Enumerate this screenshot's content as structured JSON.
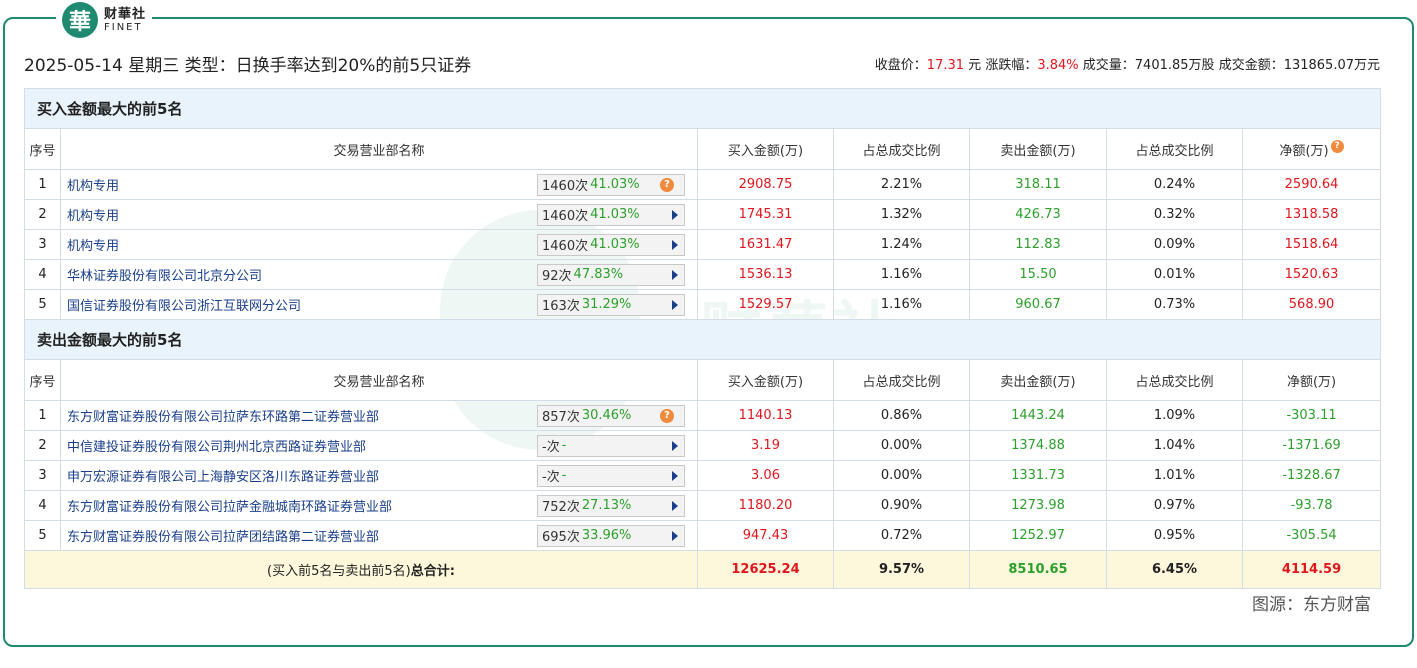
{
  "brand": {
    "seal": "華",
    "cn": "财華社",
    "en": "FINET"
  },
  "header": {
    "title": "2025-05-14 星期三 类型：日换手率达到20%的前5只证券",
    "close_label": "收盘价：",
    "close_value": "17.31",
    "close_unit": "元",
    "change_label": "涨跌幅：",
    "change_value": "3.84%",
    "volume": "成交量：7401.85万股",
    "turnover": "成交金额：131865.07万元"
  },
  "columns": [
    "序号",
    "交易营业部名称",
    "买入金额(万)",
    "占总成交比例",
    "卖出金额(万)",
    "占总成交比例",
    "净额(万)"
  ],
  "buy_section": {
    "title": "买入金额最大的前5名",
    "rows": [
      {
        "idx": "1",
        "name": "机构专用",
        "count": "1460次",
        "pct": "41.03%",
        "icon": "q",
        "buy": "2908.75",
        "buy_ratio": "2.21%",
        "sell": "318.11",
        "sell_ratio": "0.24%",
        "net": "2590.64"
      },
      {
        "idx": "2",
        "name": "机构专用",
        "count": "1460次",
        "pct": "41.03%",
        "icon": "arrow",
        "buy": "1745.31",
        "buy_ratio": "1.32%",
        "sell": "426.73",
        "sell_ratio": "0.32%",
        "net": "1318.58"
      },
      {
        "idx": "3",
        "name": "机构专用",
        "count": "1460次",
        "pct": "41.03%",
        "icon": "arrow",
        "buy": "1631.47",
        "buy_ratio": "1.24%",
        "sell": "112.83",
        "sell_ratio": "0.09%",
        "net": "1518.64"
      },
      {
        "idx": "4",
        "name": "华林证券股份有限公司北京分公司",
        "count": "92次",
        "pct": "47.83%",
        "icon": "arrow",
        "buy": "1536.13",
        "buy_ratio": "1.16%",
        "sell": "15.50",
        "sell_ratio": "0.01%",
        "net": "1520.63"
      },
      {
        "idx": "5",
        "name": "国信证券股份有限公司浙江互联网分公司",
        "count": "163次",
        "pct": "31.29%",
        "icon": "arrow",
        "buy": "1529.57",
        "buy_ratio": "1.16%",
        "sell": "960.67",
        "sell_ratio": "0.73%",
        "net": "568.90"
      }
    ]
  },
  "sell_section": {
    "title": "卖出金额最大的前5名",
    "rows": [
      {
        "idx": "1",
        "name": "东方财富证券股份有限公司拉萨东环路第二证券营业部",
        "count": "857次",
        "pct": "30.46%",
        "icon": "q",
        "buy": "1140.13",
        "buy_ratio": "0.86%",
        "sell": "1443.24",
        "sell_ratio": "1.09%",
        "net": "-303.11"
      },
      {
        "idx": "2",
        "name": "中信建投证券股份有限公司荆州北京西路证券营业部",
        "count": "-次",
        "pct": "-",
        "icon": "arrow",
        "buy": "3.19",
        "buy_ratio": "0.00%",
        "sell": "1374.88",
        "sell_ratio": "1.04%",
        "net": "-1371.69"
      },
      {
        "idx": "3",
        "name": "申万宏源证券有限公司上海静安区洛川东路证券营业部",
        "count": "-次",
        "pct": "-",
        "icon": "arrow",
        "buy": "3.06",
        "buy_ratio": "0.00%",
        "sell": "1331.73",
        "sell_ratio": "1.01%",
        "net": "-1328.67"
      },
      {
        "idx": "4",
        "name": "东方财富证券股份有限公司拉萨金融城南环路证券营业部",
        "count": "752次",
        "pct": "27.13%",
        "icon": "arrow",
        "buy": "1180.20",
        "buy_ratio": "0.90%",
        "sell": "1273.98",
        "sell_ratio": "0.97%",
        "net": "-93.78"
      },
      {
        "idx": "5",
        "name": "东方财富证券股份有限公司拉萨团结路第二证券营业部",
        "count": "695次",
        "pct": "33.96%",
        "icon": "arrow",
        "buy": "947.43",
        "buy_ratio": "0.72%",
        "sell": "1252.97",
        "sell_ratio": "0.95%",
        "net": "-305.54"
      }
    ]
  },
  "total": {
    "label_prefix": "(买入前5名与卖出前5名)",
    "label_bold": "总合计:",
    "buy": "12625.24",
    "buy_ratio": "9.57%",
    "sell": "8510.65",
    "sell_ratio": "6.45%",
    "net": "4114.59"
  },
  "source": "图源：东方财富",
  "colors": {
    "brand": "#1f8a70",
    "up": "#e0161e",
    "down": "#2ca02c",
    "section_bg": "#e8f3fb",
    "total_bg": "#fdf8dc"
  }
}
